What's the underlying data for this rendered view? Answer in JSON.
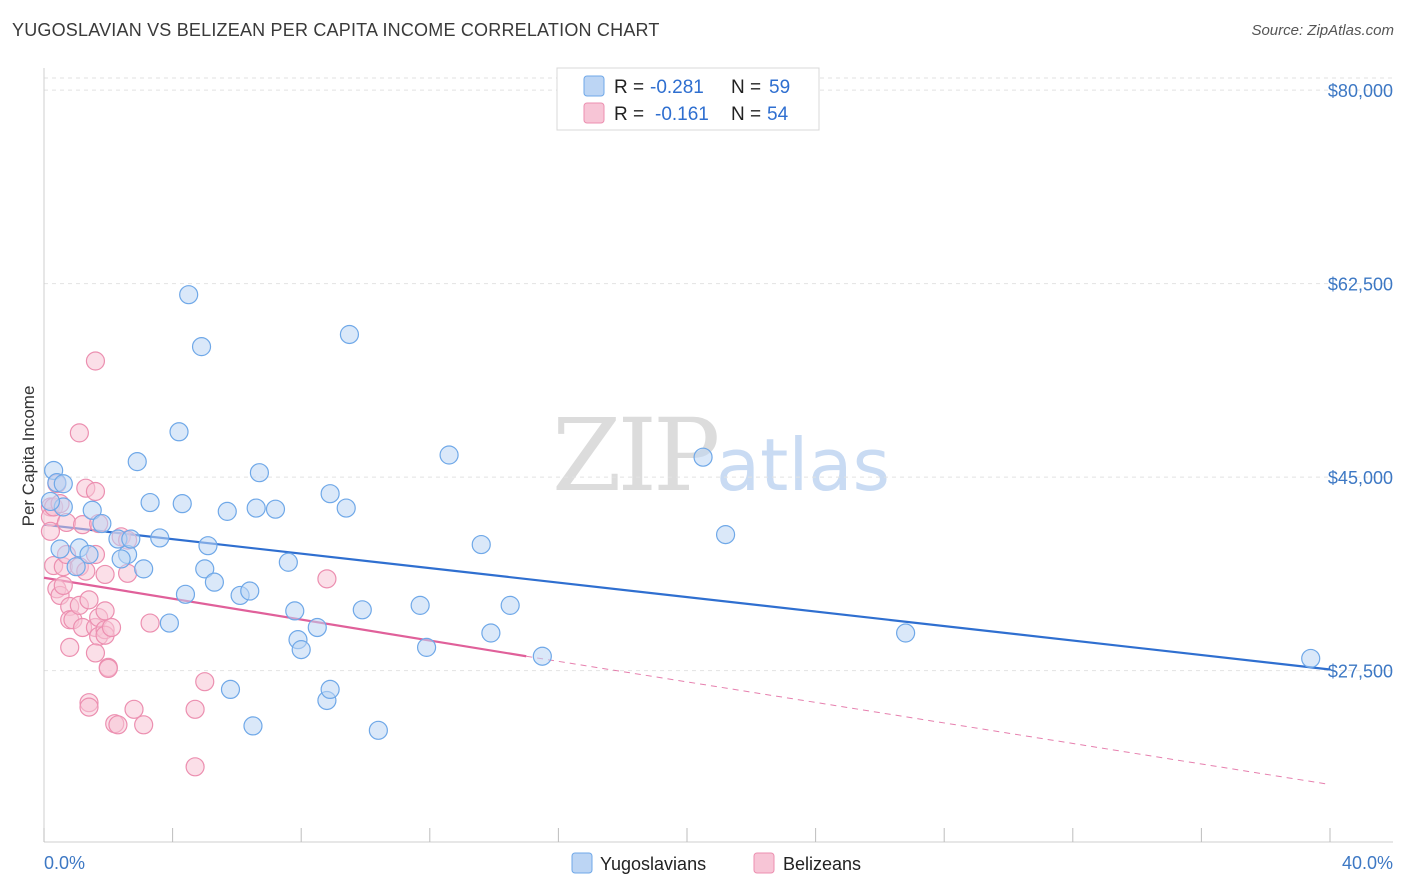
{
  "title": "YUGOSLAVIAN VS BELIZEAN PER CAPITA INCOME CORRELATION CHART",
  "source": "Source: ZipAtlas.com",
  "watermark": {
    "part1": "ZIP",
    "part2": "atlas"
  },
  "colors": {
    "blue": "#6fa8e8",
    "blue_fill": "#bcd5f4",
    "blue_line": "#2f6fd0",
    "pink": "#ec8fb0",
    "pink_fill": "#f7c5d6",
    "pink_line": "#e0609a",
    "tick": "#3d78c4",
    "grid": "#e2e2e2"
  },
  "legend": {
    "rows": [
      {
        "r_label": "R =",
        "r_value": "-0.281",
        "n_label": "N =",
        "n_value": "59"
      },
      {
        "r_label": "R =",
        "r_value": "-0.161",
        "n_label": "N =",
        "n_value": "54"
      }
    ]
  },
  "chart_data": {
    "type": "scatter",
    "xlabel": "",
    "ylabel": "Per Capita Income",
    "xlim": [
      0,
      40
    ],
    "ylim": [
      12000,
      82000
    ],
    "x_tick_labels": [
      "0.0%",
      "40.0%"
    ],
    "y_ticks": [
      27500,
      45000,
      62500,
      80000
    ],
    "y_tick_labels": [
      "$27,500",
      "$45,000",
      "$62,500",
      "$80,000"
    ],
    "series": [
      {
        "name": "Yugoslavians",
        "trend": {
          "x0": 0,
          "y0": 40700,
          "x1": 40,
          "y1": 27600
        },
        "points": [
          [
            0.3,
            45600
          ],
          [
            0.4,
            44500
          ],
          [
            0.6,
            42300
          ],
          [
            0.2,
            42800
          ],
          [
            1.5,
            42000
          ],
          [
            0.5,
            38500
          ],
          [
            1.1,
            38600
          ],
          [
            1.8,
            40800
          ],
          [
            2.3,
            39400
          ],
          [
            1.4,
            38000
          ],
          [
            1.0,
            36900
          ],
          [
            2.6,
            38000
          ],
          [
            2.7,
            39400
          ],
          [
            3.1,
            36700
          ],
          [
            3.3,
            42700
          ],
          [
            3.6,
            39500
          ],
          [
            2.9,
            46400
          ],
          [
            4.2,
            49100
          ],
          [
            4.3,
            42600
          ],
          [
            4.5,
            61500
          ],
          [
            4.9,
            56800
          ],
          [
            5.0,
            36700
          ],
          [
            5.1,
            38800
          ],
          [
            5.3,
            35500
          ],
          [
            5.7,
            41900
          ],
          [
            6.1,
            34300
          ],
          [
            6.4,
            34700
          ],
          [
            6.6,
            42200
          ],
          [
            6.7,
            45400
          ],
          [
            7.2,
            42100
          ],
          [
            7.6,
            37300
          ],
          [
            7.8,
            32900
          ],
          [
            7.9,
            30300
          ],
          [
            8.0,
            29400
          ],
          [
            8.5,
            31400
          ],
          [
            8.8,
            24800
          ],
          [
            8.9,
            25800
          ],
          [
            8.9,
            43500
          ],
          [
            9.4,
            42200
          ],
          [
            9.5,
            57900
          ],
          [
            9.9,
            33000
          ],
          [
            10.4,
            22100
          ],
          [
            11.7,
            33400
          ],
          [
            11.9,
            29600
          ],
          [
            12.6,
            47000
          ],
          [
            13.6,
            38900
          ],
          [
            13.9,
            30900
          ],
          [
            14.5,
            33400
          ],
          [
            15.5,
            28800
          ],
          [
            20.5,
            46800
          ],
          [
            21.2,
            39800
          ],
          [
            26.8,
            30900
          ],
          [
            39.4,
            28600
          ],
          [
            4.4,
            34400
          ],
          [
            3.9,
            31800
          ],
          [
            2.4,
            37600
          ],
          [
            6.5,
            22500
          ],
          [
            5.8,
            25800
          ],
          [
            0.6,
            44400
          ]
        ]
      },
      {
        "name": "Belizeans",
        "trend": {
          "x0": 0,
          "y0": 35900,
          "x1": 15,
          "y1": 28800,
          "dash_x1": 40,
          "dash_y1": 17200
        },
        "points": [
          [
            0.2,
            42300
          ],
          [
            0.2,
            41400
          ],
          [
            0.2,
            40100
          ],
          [
            0.3,
            42300
          ],
          [
            0.3,
            37000
          ],
          [
            0.4,
            44400
          ],
          [
            0.4,
            34900
          ],
          [
            0.5,
            34300
          ],
          [
            0.5,
            42600
          ],
          [
            0.6,
            36900
          ],
          [
            0.6,
            35200
          ],
          [
            0.7,
            40900
          ],
          [
            0.7,
            38000
          ],
          [
            0.8,
            33300
          ],
          [
            0.8,
            32100
          ],
          [
            0.8,
            29600
          ],
          [
            0.9,
            32100
          ],
          [
            1.1,
            49000
          ],
          [
            1.1,
            36900
          ],
          [
            1.1,
            33400
          ],
          [
            1.2,
            40700
          ],
          [
            1.2,
            31400
          ],
          [
            1.3,
            44000
          ],
          [
            1.3,
            36500
          ],
          [
            1.4,
            33900
          ],
          [
            1.4,
            24600
          ],
          [
            1.4,
            24200
          ],
          [
            1.6,
            38000
          ],
          [
            1.6,
            31400
          ],
          [
            1.7,
            40800
          ],
          [
            1.7,
            32300
          ],
          [
            1.7,
            30600
          ],
          [
            1.6,
            43700
          ],
          [
            1.9,
            31200
          ],
          [
            1.9,
            36200
          ],
          [
            1.9,
            32900
          ],
          [
            1.9,
            30700
          ],
          [
            1.6,
            29100
          ],
          [
            1.6,
            55500
          ],
          [
            2.0,
            27800
          ],
          [
            2.0,
            27700
          ],
          [
            2.1,
            31400
          ],
          [
            2.2,
            22700
          ],
          [
            2.3,
            22600
          ],
          [
            2.4,
            39600
          ],
          [
            2.6,
            39300
          ],
          [
            2.6,
            36300
          ],
          [
            2.8,
            24000
          ],
          [
            3.1,
            22600
          ],
          [
            3.3,
            31800
          ],
          [
            4.7,
            24000
          ],
          [
            4.7,
            18800
          ],
          [
            5.0,
            26500
          ],
          [
            8.8,
            35800
          ]
        ]
      }
    ]
  },
  "bottom_legend": {
    "items": [
      {
        "label": "Yugoslavians"
      },
      {
        "label": "Belizeans"
      }
    ]
  }
}
